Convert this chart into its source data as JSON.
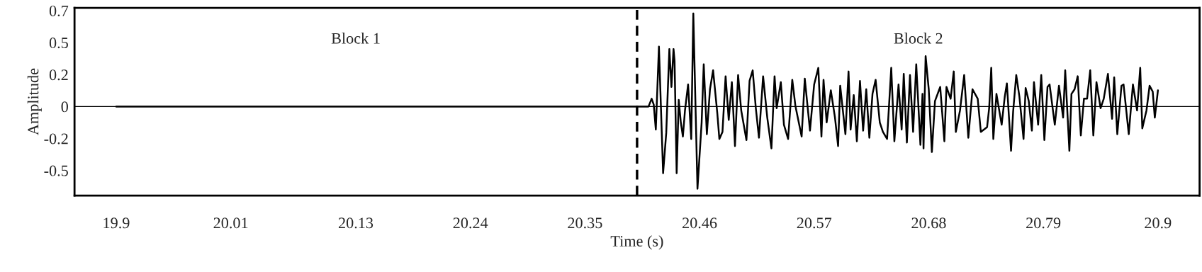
{
  "chart_data": {
    "type": "line",
    "xlabel": "Time (s)",
    "ylabel": "Amplitude",
    "xlim": [
      19.86,
      20.94
    ],
    "ylim": [
      -0.65,
      0.72
    ],
    "xticks": [
      19.9,
      20.01,
      20.13,
      20.24,
      20.35,
      20.46,
      20.57,
      20.68,
      20.79,
      20.9
    ],
    "yticks": [
      {
        "value": -0.4667,
        "label": "-0.5"
      },
      {
        "value": -0.2333,
        "label": "-0.2"
      },
      0,
      {
        "value": 0.2333,
        "label": "0.2"
      },
      {
        "value": 0.4667,
        "label": "0.5"
      },
      0.7
    ],
    "grid": false,
    "marker": "none",
    "line_style": "solid",
    "ref_lines": [
      {
        "axis": "y",
        "value": 0,
        "color": "#000000",
        "line_style": "solid"
      },
      {
        "axis": "x",
        "value": 20.4,
        "color": "#000000",
        "line_style": "dashed"
      }
    ],
    "annotations": [
      "Block 1",
      "Block 2"
    ],
    "series": [
      {
        "color": "#000000",
        "x": [
          19.9,
          20.411,
          20.414,
          20.416,
          20.418,
          20.421,
          20.425,
          20.428,
          20.431,
          20.433,
          20.435,
          20.436,
          20.438,
          20.44,
          20.442,
          20.444,
          20.446,
          20.449,
          20.452,
          20.454,
          20.458,
          20.462,
          20.464,
          20.467,
          20.47,
          20.473,
          20.477,
          20.479,
          20.482,
          20.485,
          20.488,
          20.491,
          20.494,
          20.497,
          20.5,
          20.505,
          20.508,
          20.511,
          20.514,
          20.517,
          20.521,
          20.525,
          20.529,
          20.532,
          20.534,
          20.538,
          20.541,
          20.545,
          20.549,
          20.552,
          20.558,
          20.561,
          20.566,
          20.57,
          20.574,
          20.577,
          20.579,
          20.582,
          20.586,
          20.59,
          20.593,
          20.595,
          20.6,
          20.603,
          20.605,
          20.608,
          20.611,
          20.614,
          20.617,
          20.62,
          20.623,
          20.626,
          20.629,
          20.633,
          20.636,
          20.64,
          20.644,
          20.647,
          20.651,
          20.654,
          20.656,
          20.659,
          20.662,
          20.665,
          20.668,
          20.672,
          20.674,
          20.675,
          20.677,
          20.68,
          20.683,
          20.686,
          20.691,
          20.695,
          20.697,
          20.701,
          20.704,
          20.706,
          20.71,
          20.714,
          20.718,
          20.722,
          20.727,
          20.73,
          20.736,
          20.738,
          20.74,
          20.742,
          20.745,
          20.75,
          20.753,
          20.755,
          20.759,
          20.761,
          20.764,
          20.767,
          20.771,
          20.773,
          20.776,
          20.779,
          20.781,
          20.785,
          20.788,
          20.791,
          20.794,
          20.796,
          20.801,
          20.805,
          20.809,
          20.811,
          20.815,
          20.817,
          20.82,
          20.823,
          20.826,
          20.829,
          20.832,
          20.835,
          20.838,
          20.841,
          20.845,
          20.848,
          20.852,
          20.856,
          20.858,
          20.861,
          20.865,
          20.867,
          20.872,
          20.876,
          20.88,
          20.883,
          20.885,
          20.889,
          20.892,
          20.895,
          20.897,
          20.9
        ],
        "values": [
          0,
          0,
          0.057,
          0.014,
          -0.168,
          0.437,
          -0.487,
          -0.194,
          0.42,
          0.143,
          0.42,
          0.334,
          -0.487,
          0.048,
          -0.116,
          -0.219,
          -0.029,
          0.161,
          -0.237,
          0.679,
          -0.6,
          -0.116,
          0.308,
          -0.202,
          0.126,
          0.264,
          -0.047,
          -0.237,
          -0.185,
          0.221,
          -0.098,
          0.178,
          -0.289,
          0.23,
          -0.029,
          -0.245,
          0.187,
          0.264,
          -0.012,
          -0.228,
          0.221,
          -0.081,
          -0.306,
          0.221,
          -0.012,
          0.178,
          -0.133,
          -0.237,
          0.195,
          0.005,
          -0.219,
          0.204,
          -0.176,
          0.161,
          0.282,
          -0.219,
          0.195,
          -0.116,
          0.118,
          -0.081,
          -0.289,
          0.152,
          -0.202,
          0.256,
          -0.168,
          0.083,
          -0.254,
          0.187,
          -0.176,
          0.126,
          -0.228,
          0.092,
          0.195,
          -0.116,
          -0.185,
          -0.237,
          0.282,
          -0.254,
          0.161,
          -0.168,
          0.238,
          -0.263,
          0.23,
          -0.185,
          0.308,
          -0.28,
          0.092,
          -0.306,
          0.368,
          0.126,
          -0.332,
          0.04,
          0.143,
          -0.254,
          0.143,
          0.057,
          0.256,
          -0.185,
          -0.029,
          0.23,
          -0.228,
          0.126,
          0.057,
          -0.185,
          -0.15,
          -0.012,
          0.282,
          -0.237,
          0.092,
          -0.133,
          0.074,
          0.169,
          -0.323,
          -0.038,
          0.23,
          0.074,
          -0.237,
          0.135,
          0.04,
          -0.176,
          0.178,
          -0.133,
          0.23,
          -0.245,
          0.143,
          0.161,
          -0.133,
          0.152,
          -0.081,
          0.264,
          -0.323,
          0.092,
          0.126,
          0.221,
          -0.211,
          0.057,
          0.057,
          0.264,
          -0.211,
          0.178,
          -0.012,
          0.057,
          0.238,
          -0.09,
          0.213,
          -0.202,
          0.152,
          0.161,
          -0.202,
          0.161,
          -0.029,
          0.282,
          -0.159,
          -0.029,
          0.152,
          0.109,
          -0.081,
          0.118
        ]
      }
    ]
  }
}
